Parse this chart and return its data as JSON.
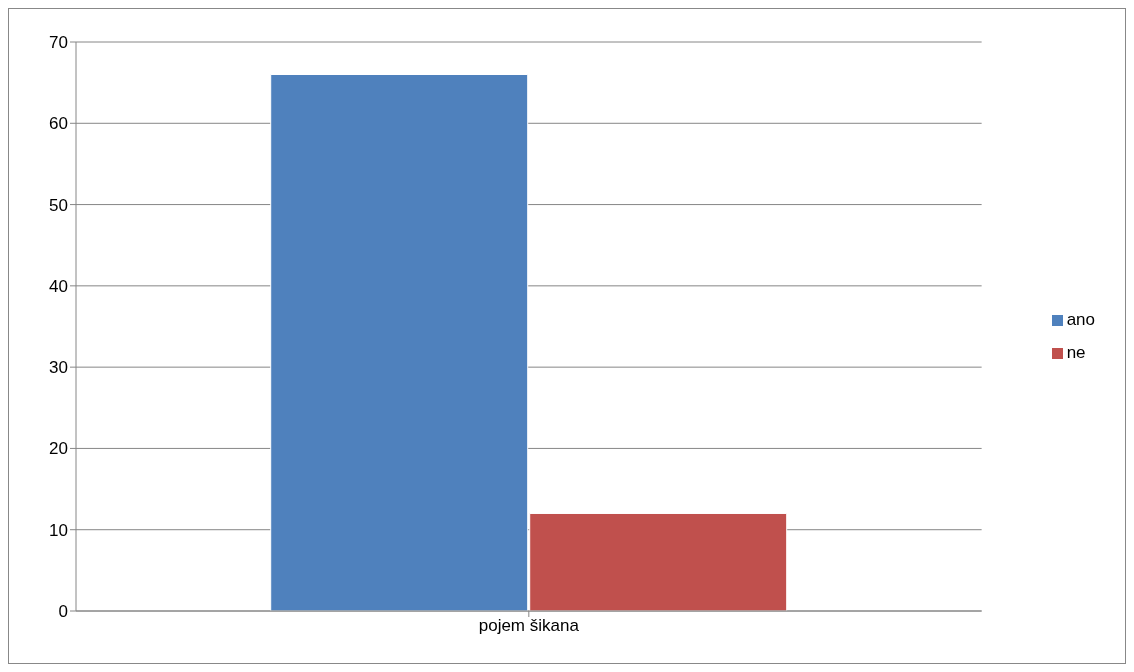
{
  "chart_data": {
    "type": "bar",
    "categories": [
      "pojem šikana"
    ],
    "series": [
      {
        "name": "ano",
        "color": "#4f81bd",
        "values": [
          66
        ]
      },
      {
        "name": "ne",
        "color": "#c0504d",
        "values": [
          12
        ]
      }
    ],
    "ylim": [
      0,
      70
    ],
    "yticks": [
      0,
      10,
      20,
      30,
      40,
      50,
      60,
      70
    ],
    "grid": "y",
    "legend": "right"
  }
}
